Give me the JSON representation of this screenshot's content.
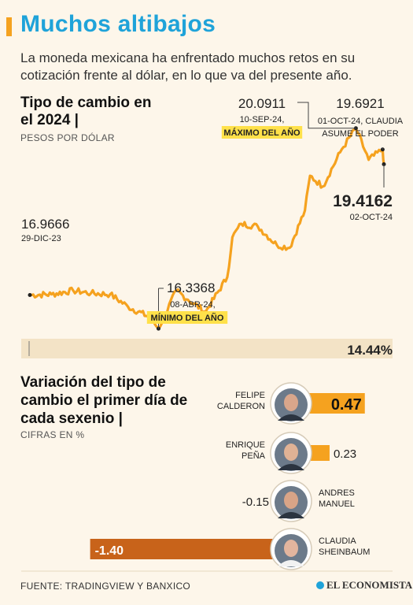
{
  "header": {
    "title": "Muchos altibajos",
    "subtitle": "La moneda mexicana ha enfrentado muchos retos en su cotización frente al dólar, en lo que va del presente año."
  },
  "colors": {
    "accent": "#f5a21f",
    "title_blue": "#1fa3d9",
    "dark_bar": "#c8631a",
    "highlight": "#ffe14a"
  },
  "chart_data": [
    {
      "type": "line",
      "title": "Tipo de cambio en el 2024",
      "ylabel": "PESOS POR DÓLAR",
      "x": [
        "2023-12-29",
        "2024-01-15",
        "2024-02-01",
        "2024-02-15",
        "2024-03-01",
        "2024-03-15",
        "2024-04-01",
        "2024-04-08",
        "2024-04-22",
        "2024-05-01",
        "2024-05-15",
        "2024-06-01",
        "2024-06-05",
        "2024-06-12",
        "2024-06-25",
        "2024-07-10",
        "2024-07-20",
        "2024-08-01",
        "2024-08-05",
        "2024-08-15",
        "2024-08-30",
        "2024-09-10",
        "2024-09-20",
        "2024-10-01",
        "2024-10-02"
      ],
      "values": [
        16.9666,
        16.98,
        17.05,
        17.0,
        16.98,
        16.75,
        16.55,
        16.3368,
        17.05,
        16.88,
        16.65,
        17.3,
        18.05,
        18.3,
        18.25,
        17.9,
        17.85,
        18.55,
        19.2,
        19.0,
        19.7,
        20.0911,
        19.5,
        19.6921,
        19.4162
      ],
      "ylim": [
        16.0,
        20.5
      ],
      "annotations": [
        {
          "value": "16.9666",
          "date": "29-DIC-23",
          "tag": ""
        },
        {
          "value": "16.3368",
          "date": "08-ABR-24,",
          "tag": "MÍNIMO DEL AÑO"
        },
        {
          "value": "20.0911",
          "date": "10-SEP-24,",
          "tag": "MÁXIMO DEL AÑO"
        },
        {
          "value": "19.6921",
          "date": "01-OCT-24, CLAUDIA",
          "note": "ASUME EL PODER"
        },
        {
          "value": "19.4162",
          "date": "02-OCT-24"
        }
      ],
      "change_label": "14.44%",
      "change_fraction": 0.1444
    },
    {
      "type": "bar",
      "title": "Variación del tipo de cambio el primer día de cada sexenio",
      "ylabel": "CIFRAS EN %",
      "categories": [
        "FELIPE CALDERON",
        "ENRIQUE PEÑA",
        "ANDRES MANUEL",
        "CLAUDIA SHEINBAUM"
      ],
      "category_lines": [
        [
          "FELIPE",
          "CALDERON"
        ],
        [
          "ENRIQUE",
          "PEÑA"
        ],
        [
          "ANDRES",
          "MANUEL"
        ],
        [
          "CLAUDIA",
          "SHEINBAUM"
        ]
      ],
      "values": [
        0.47,
        0.23,
        -0.15,
        -1.4
      ],
      "value_labels": [
        "0.47",
        "0.23",
        "-0.15",
        "-1.40"
      ]
    }
  ],
  "footer": {
    "source": "FUENTE: TRADINGVIEW Y BANXICO",
    "logo": "EL ECONOMISTA"
  }
}
